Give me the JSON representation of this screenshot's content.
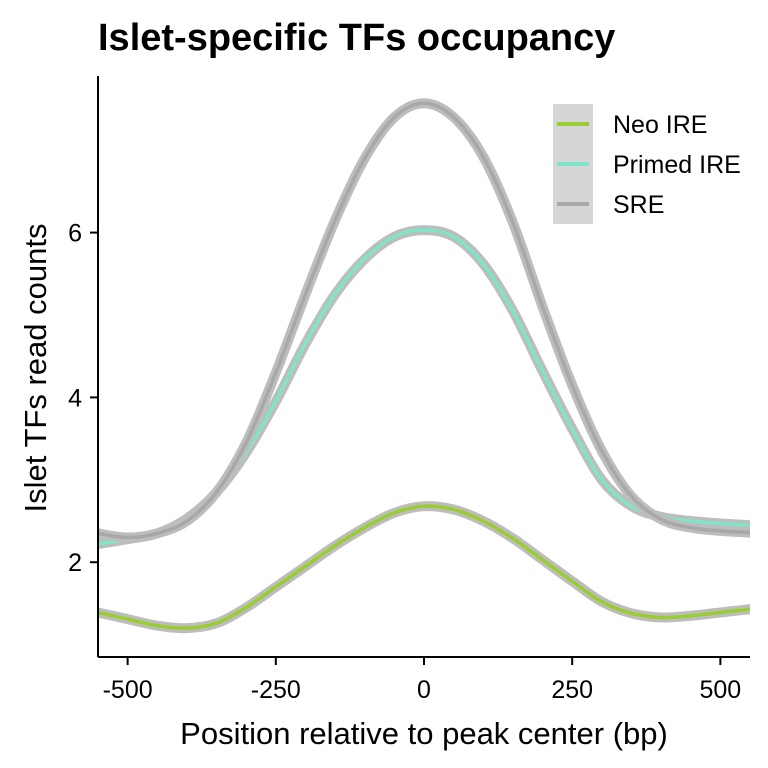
{
  "chart_data": {
    "type": "line",
    "title": "Islet-specific TFs occupancy",
    "xlabel": "Position relative to peak center (bp)",
    "ylabel": "Islet TFs read counts",
    "xlim": [
      -550,
      550
    ],
    "ylim": [
      0.85,
      7.9
    ],
    "x_ticks": [
      -500,
      -250,
      0,
      250,
      500
    ],
    "y_ticks": [
      2,
      4,
      6
    ],
    "grid": false,
    "legend_position": "top-right",
    "confidence_band": true,
    "series": [
      {
        "name": "Neo IRE",
        "color": "#9ACD32",
        "x": [
          -550,
          -500,
          -450,
          -400,
          -350,
          -300,
          -250,
          -200,
          -150,
          -100,
          -50,
          0,
          50,
          100,
          150,
          200,
          250,
          300,
          350,
          400,
          450,
          500,
          550
        ],
        "y": [
          1.39,
          1.31,
          1.23,
          1.2,
          1.26,
          1.45,
          1.7,
          1.95,
          2.2,
          2.42,
          2.6,
          2.68,
          2.64,
          2.5,
          2.29,
          2.03,
          1.77,
          1.52,
          1.38,
          1.33,
          1.35,
          1.39,
          1.43
        ]
      },
      {
        "name": "Primed IRE",
        "color": "#7FE5C8",
        "x": [
          -550,
          -500,
          -450,
          -400,
          -350,
          -300,
          -250,
          -200,
          -150,
          -100,
          -50,
          0,
          50,
          100,
          150,
          200,
          250,
          300,
          350,
          400,
          450,
          500,
          550
        ],
        "y": [
          2.22,
          2.28,
          2.35,
          2.53,
          2.85,
          3.33,
          3.95,
          4.65,
          5.25,
          5.68,
          5.95,
          6.03,
          5.95,
          5.62,
          5.05,
          4.32,
          3.62,
          3.0,
          2.68,
          2.55,
          2.5,
          2.47,
          2.45
        ]
      },
      {
        "name": "SRE",
        "color": "#A8A8A8",
        "x": [
          -550,
          -500,
          -450,
          -400,
          -350,
          -300,
          -250,
          -200,
          -150,
          -100,
          -50,
          0,
          50,
          100,
          150,
          200,
          250,
          300,
          350,
          400,
          450,
          500,
          550
        ],
        "y": [
          2.35,
          2.3,
          2.35,
          2.5,
          2.85,
          3.45,
          4.3,
          5.25,
          6.15,
          6.9,
          7.4,
          7.57,
          7.4,
          6.92,
          6.12,
          5.1,
          4.15,
          3.35,
          2.8,
          2.52,
          2.42,
          2.38,
          2.36
        ]
      }
    ]
  }
}
